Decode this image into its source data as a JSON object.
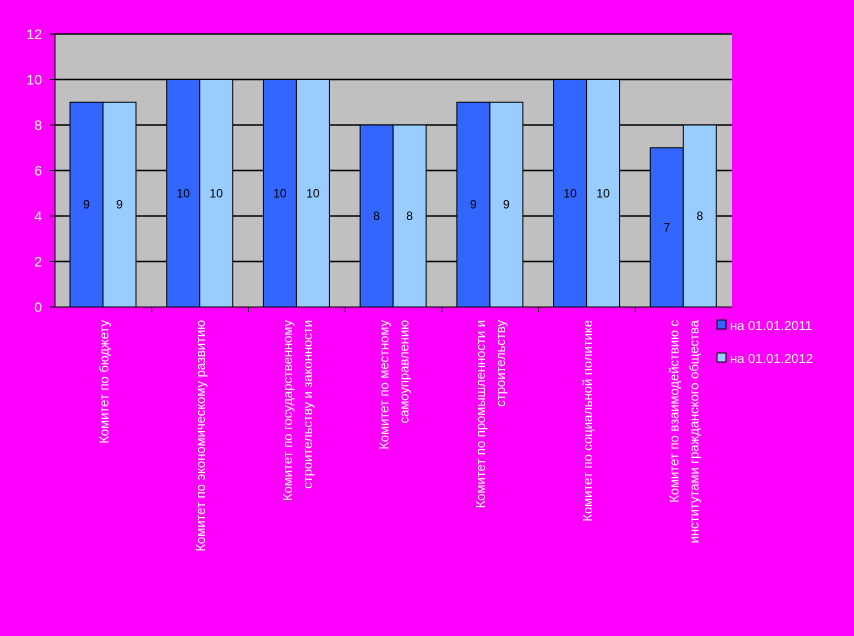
{
  "chart_data": {
    "type": "bar",
    "ylim": [
      0,
      12
    ],
    "yticks": [
      0,
      2,
      4,
      6,
      8,
      10,
      12
    ],
    "grid": true,
    "legend_position": "right",
    "categories": [
      [
        "Комитет по бюджету"
      ],
      [
        "Комитет по экономическому развитию"
      ],
      [
        "Комитет по государственному",
        "строительству и законности"
      ],
      [
        "Комитет по местному",
        "самоуправлению"
      ],
      [
        "Комитет по промышленности и",
        "строительству"
      ],
      [
        "Комитет по социальной политике"
      ],
      [
        "Комитет по взаимодействию с",
        "институтами гражданского общества"
      ]
    ],
    "series": [
      {
        "name": "на 01.01.2011",
        "color": "#3366ff",
        "values": [
          9,
          10,
          10,
          8,
          9,
          10,
          7
        ]
      },
      {
        "name": "на 01.01.2012",
        "color": "#99ccff",
        "values": [
          9,
          10,
          10,
          8,
          9,
          10,
          8
        ]
      }
    ],
    "colors": {
      "background": "#ff00ff",
      "plot_area": "#c0c0c0"
    }
  }
}
